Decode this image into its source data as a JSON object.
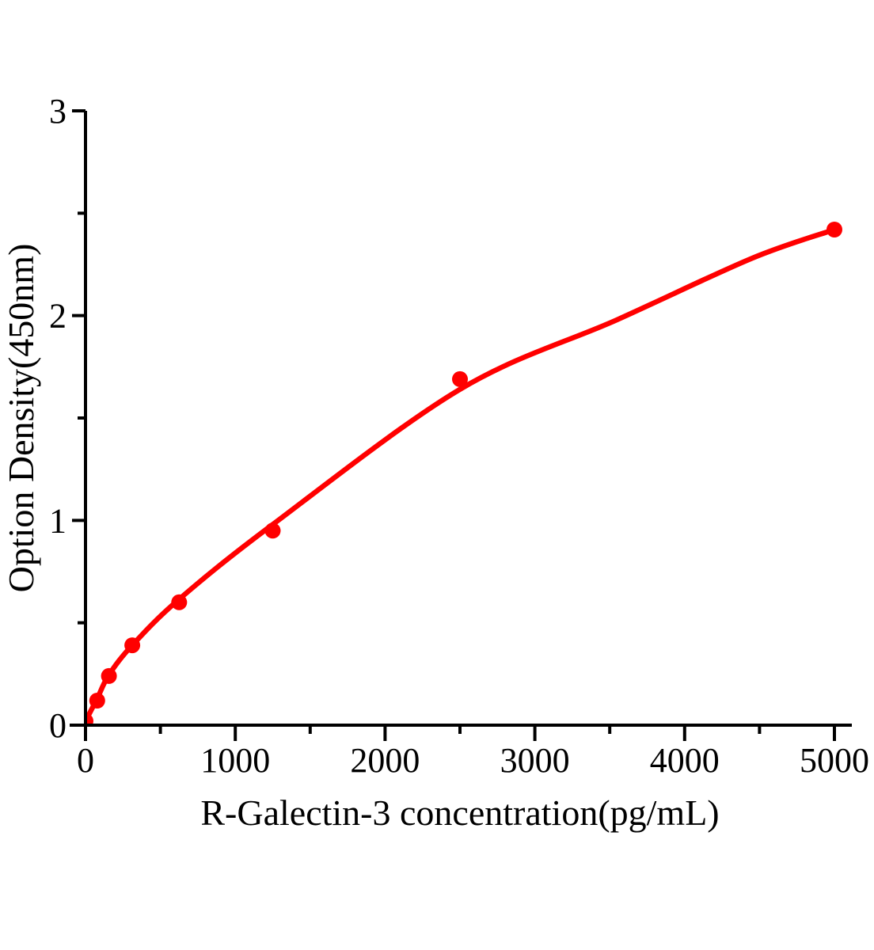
{
  "chart_data": {
    "type": "scatter",
    "title": "",
    "xlabel": "R-Galectin-3 concentration(pg/mL)",
    "ylabel": "Option Density(450nm)",
    "xlim": [
      0,
      5200
    ],
    "ylim": [
      0,
      3
    ],
    "grid": false,
    "legend": null,
    "x_ticks": {
      "major_values": [
        0,
        1000,
        2000,
        3000,
        4000,
        5000
      ],
      "major_labels": [
        "0",
        "1000",
        "2000",
        "3000",
        "4000",
        "5000"
      ],
      "minor_values": [
        500,
        1500,
        2500,
        3500,
        4500
      ]
    },
    "y_ticks": {
      "major_values": [
        0,
        1,
        2,
        3
      ],
      "major_labels": [
        "0",
        "1",
        "2",
        "3"
      ],
      "minor_values": [
        0.5,
        1.5,
        2.5
      ]
    },
    "series": [
      {
        "name": "standard-points",
        "kind": "scatter",
        "marker": "circle",
        "color": "#ff0000",
        "x": [
          0,
          78.125,
          156.25,
          312.5,
          625,
          1250,
          2500,
          5000
        ],
        "y": [
          0.02,
          0.12,
          0.24,
          0.39,
          0.6,
          0.95,
          1.69,
          2.42
        ]
      },
      {
        "name": "fit-curve",
        "kind": "line",
        "color": "#ff0000",
        "x": [
          0,
          78,
          156,
          312,
          625,
          1250,
          2500,
          3550,
          4450,
          5000
        ],
        "y": [
          0.02,
          0.13,
          0.245,
          0.39,
          0.615,
          0.98,
          1.64,
          1.98,
          2.28,
          2.42
        ]
      }
    ],
    "colors": {
      "accent": "#ff0000",
      "axis": "#000000",
      "background": "#ffffff"
    }
  }
}
